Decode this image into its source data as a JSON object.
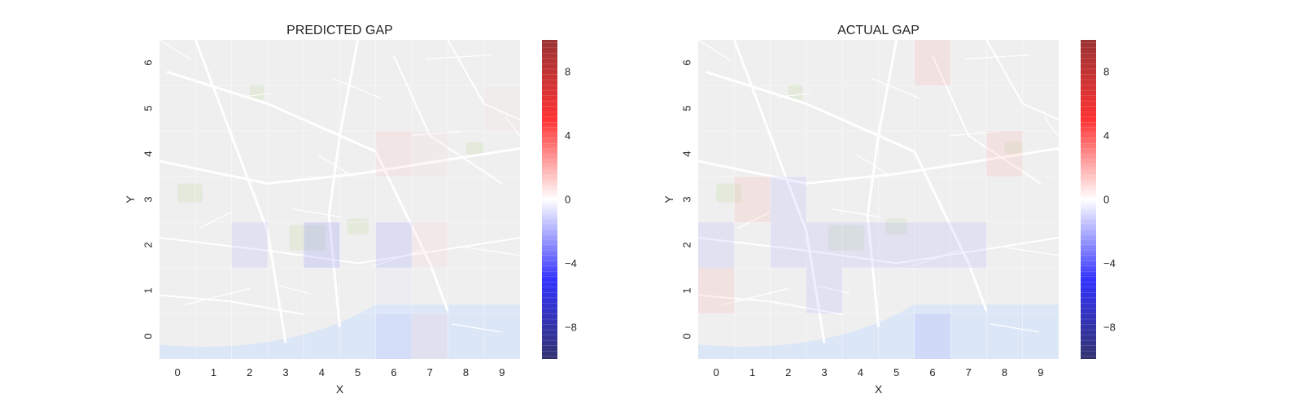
{
  "chart_data": [
    {
      "type": "heatmap",
      "title": "PREDICTED GAP",
      "xlabel": "X",
      "ylabel": "Y",
      "x_ticks": [
        "0",
        "1",
        "2",
        "3",
        "4",
        "5",
        "6",
        "7",
        "8",
        "9"
      ],
      "y_ticks": [
        "0",
        "1",
        "2",
        "3",
        "4",
        "5",
        "6"
      ],
      "xlim": [
        -0.5,
        9.5
      ],
      "ylim": [
        -0.5,
        6.5
      ],
      "colormap": "seismic",
      "vmin": -10,
      "vmax": 10,
      "colorbar_ticks": [
        "8",
        "4",
        "0",
        "−4",
        "−8"
      ],
      "cells": [
        {
          "x": 2,
          "y": 2,
          "value": -2
        },
        {
          "x": 4,
          "y": 2,
          "value": -3
        },
        {
          "x": 6,
          "y": 2,
          "value": -2.5
        },
        {
          "x": 7,
          "y": 2,
          "value": 1
        },
        {
          "x": 6,
          "y": 4,
          "value": 1.5
        },
        {
          "x": 7,
          "y": 4,
          "value": 0.8
        },
        {
          "x": 9,
          "y": 5,
          "value": 0.6
        },
        {
          "x": 6,
          "y": 0,
          "value": -1.5
        },
        {
          "x": 7,
          "y": 0,
          "value": 1.2
        },
        {
          "x": 6,
          "y": 1,
          "value": -0.5
        }
      ]
    },
    {
      "type": "heatmap",
      "title": "ACTUAL GAP",
      "xlabel": "X",
      "ylabel": "Y",
      "x_ticks": [
        "0",
        "1",
        "2",
        "3",
        "4",
        "5",
        "6",
        "7",
        "8",
        "9"
      ],
      "y_ticks": [
        "0",
        "1",
        "2",
        "3",
        "4",
        "5",
        "6"
      ],
      "xlim": [
        -0.5,
        9.5
      ],
      "ylim": [
        -0.5,
        6.5
      ],
      "colormap": "seismic",
      "vmin": -10,
      "vmax": 10,
      "colorbar_ticks": [
        "8",
        "4",
        "0",
        "−4",
        "−8"
      ],
      "cells": [
        {
          "x": 6,
          "y": 6,
          "value": 2
        },
        {
          "x": 8,
          "y": 4,
          "value": 2
        },
        {
          "x": 1,
          "y": 3,
          "value": 2
        },
        {
          "x": 2,
          "y": 3,
          "value": -2
        },
        {
          "x": 0,
          "y": 2,
          "value": -2
        },
        {
          "x": 2,
          "y": 2,
          "value": -2
        },
        {
          "x": 3,
          "y": 2,
          "value": -2
        },
        {
          "x": 4,
          "y": 2,
          "value": -2
        },
        {
          "x": 5,
          "y": 2,
          "value": -2
        },
        {
          "x": 6,
          "y": 2,
          "value": -2
        },
        {
          "x": 7,
          "y": 2,
          "value": -2
        },
        {
          "x": 0,
          "y": 1,
          "value": 2
        },
        {
          "x": 3,
          "y": 1,
          "value": -2
        },
        {
          "x": 6,
          "y": 0,
          "value": -2
        }
      ]
    }
  ]
}
